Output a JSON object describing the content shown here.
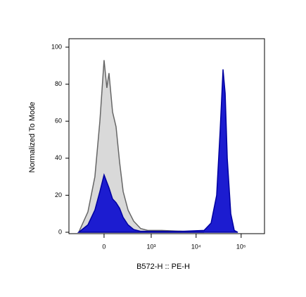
{
  "chart_data": {
    "type": "area",
    "x_label": "B572-H :: PE-H",
    "y_label": "Normalized To Mode",
    "x_scale": "biexponential",
    "xlim": [
      -530,
      330000
    ],
    "xticks": [
      {
        "value": 0,
        "label": "0"
      },
      {
        "value": 1000,
        "label": "10³"
      },
      {
        "value": 10000,
        "label": "10⁴"
      },
      {
        "value": 100000,
        "label": "10⁵"
      }
    ],
    "ylim": [
      0,
      100
    ],
    "yticks": [
      0,
      20,
      40,
      60,
      80,
      100
    ],
    "series": [
      {
        "color": "#d9d9d9",
        "stroke": "#666666",
        "x": [
          -306,
          -167,
          -88,
          -39,
          0,
          26,
          46,
          81,
          118,
          159,
          206,
          282,
          391,
          574,
          832,
          1725,
          5090,
          15000
        ],
        "values": [
          0,
          11,
          30,
          60,
          93,
          78,
          86,
          65,
          57,
          38,
          22,
          12,
          6,
          2,
          1,
          1,
          0.5,
          0
        ]
      },
      {
        "color": "#1c1cd0",
        "stroke": "#0000a0",
        "x": [
          -306,
          -167,
          -88,
          -39,
          0,
          26,
          46,
          81,
          118,
          159,
          206,
          282,
          391,
          574,
          832,
          1725,
          5090,
          15000,
          21500,
          28600,
          34200,
          39600,
          44200,
          49200,
          58900,
          70400,
          84200
        ],
        "values": [
          0,
          4,
          12,
          22,
          31,
          27,
          24,
          18,
          16,
          13,
          8,
          4,
          1.5,
          0.5,
          0.5,
          0.5,
          0.5,
          1,
          5,
          20,
          55,
          88,
          75,
          40,
          10,
          1,
          0
        ]
      }
    ]
  }
}
